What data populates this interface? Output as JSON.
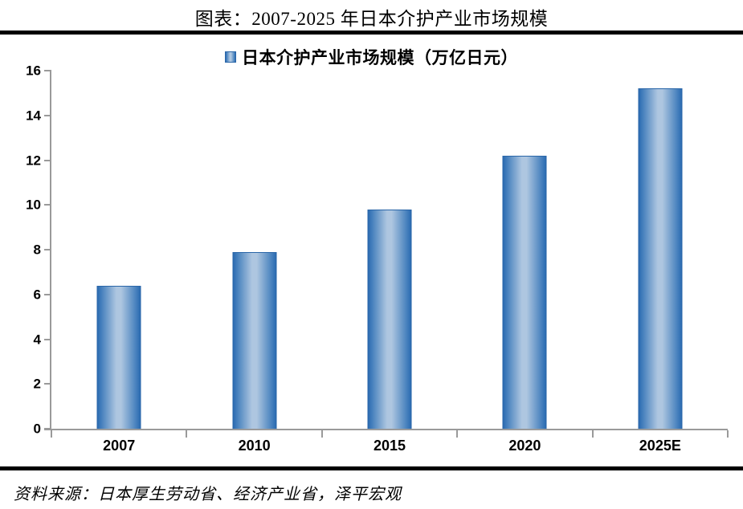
{
  "chart_data": {
    "type": "bar",
    "title": "图表：2007-2025 年日本介护产业市场规模",
    "legend": [
      {
        "label": "日本介护产业市场规模（万亿日元）"
      }
    ],
    "legend_position": "top-center",
    "categories": [
      "2007",
      "2010",
      "2015",
      "2020",
      "2025E"
    ],
    "values": [
      6.4,
      7.9,
      9.8,
      12.2,
      15.2
    ],
    "xlabel": "",
    "ylabel": "",
    "ylim": [
      0,
      16
    ],
    "y_ticks": [
      0,
      2,
      4,
      6,
      8,
      10,
      12,
      14,
      16
    ],
    "grid": false,
    "colors": {
      "bar_edge": "#2B6BB2",
      "bar_mid": "#4E86C0",
      "bar_highlight": "#AEC6E0",
      "bar_border": "#2A66A8",
      "axis": "#9A9A9A",
      "divider": "#000000",
      "text": "#000000"
    }
  },
  "page": {
    "source_note": "资料来源：日本厚生劳动省、经济产业省，泽平宏观"
  }
}
